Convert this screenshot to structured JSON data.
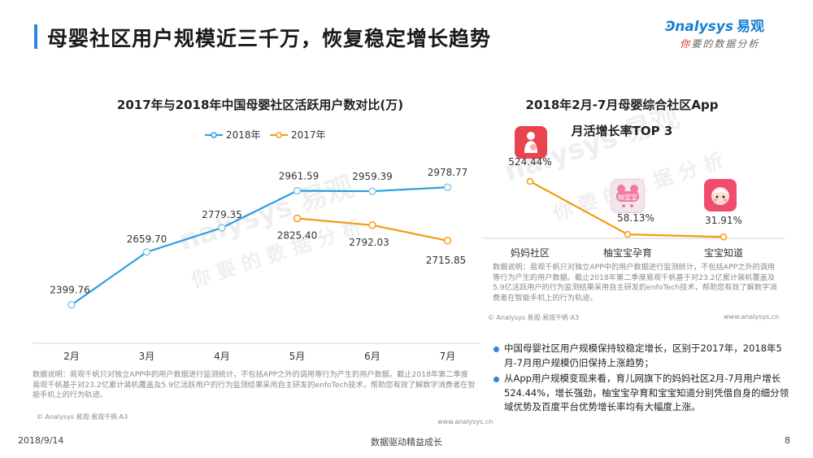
{
  "header": {
    "title": "母婴社区用户规模近三千万，恢复稳定增长趋势",
    "logo_en": "nalysys",
    "logo_cn": "易观",
    "logo_tagline_1": "你",
    "logo_tagline_2": "要的数据分析"
  },
  "left_chart": {
    "title": "2017年与2018年中国母婴社区活跃用户数对比(万)",
    "note": "数据说明：易观千帆只对独立APP中的用户数据进行监测统计，不包括APP之外的调用等行为产生的用户数据。截止2018年第二季度易观千帆基于对23.2亿累计装机覆盖及5.9亿活跃用户的行为监测结果采用自主研发的enfoTech技术，帮助您有效了解数字消费者在智能手机上的行为轨迹。",
    "source_left": "© Analysys 易观·易观千帆·A3",
    "source_right": "www.analysys.cn"
  },
  "right_chart": {
    "title_line1": "2018年2月-7月母婴综合社区App",
    "title_line2": "月活增长率TOP 3",
    "note": "数据说明：易观千帆只对独立APP中的用户数据进行监测统计，不包括APP之外的调用等行为产生的用户数据。截止2018年第二季度易观千帆基于对23.2亿累计装机覆盖及5.9亿活跃用户的行为监测结果采用自主研发的enfoTech技术，帮助您有效了解数字消费者在智能手机上的行为轨迹。",
    "source_left": "© Analysys 易观·易观千帆·A3",
    "source_right": "www.analysys.cn",
    "icon_label_2": "柚宝宝"
  },
  "chart_data": [
    {
      "type": "line",
      "title": "2017年与2018年中国母婴社区活跃用户数对比(万)",
      "categories": [
        "2月",
        "3月",
        "4月",
        "5月",
        "6月",
        "7月"
      ],
      "series": [
        {
          "name": "2018年",
          "color": "#2a9fe0",
          "values": [
            2399.76,
            2659.7,
            2779.35,
            2961.59,
            2959.39,
            2978.77
          ],
          "labels": [
            "2399.76",
            "2659.70",
            "2779.35",
            "2961.59",
            "2959.39",
            "2978.77"
          ]
        },
        {
          "name": "2017年",
          "color": "#f39c12",
          "values": [
            null,
            null,
            null,
            2825.4,
            2792.03,
            2715.85
          ],
          "labels": [
            "",
            "",
            "",
            "2825.40",
            "2792.03",
            "2715.85"
          ]
        }
      ],
      "ylim": [
        2250,
        3100
      ],
      "grid": false,
      "legend": "top"
    },
    {
      "type": "line",
      "title": "2018年2月-7月母婴综合社区App 月活增长率TOP 3",
      "categories": [
        "妈妈社区",
        "柚宝宝孕育",
        "宝宝知道"
      ],
      "series": [
        {
          "name": "growth",
          "color": "#f39c12",
          "values": [
            524.44,
            58.13,
            31.91
          ],
          "labels": [
            "524.44%",
            "58.13%",
            "31.91%"
          ]
        }
      ],
      "ylim": [
        0,
        700
      ],
      "grid": false
    }
  ],
  "bullets": [
    "中国母婴社区用户规模保持较稳定增长，区别于2017年，2018年5月-7月用户规模仍旧保持上涨趋势；",
    "从App用户规模变现来看，育儿网旗下的妈妈社区2月-7月用户增长524.44%，增长强劲，柚宝宝孕育和宝宝知道分别凭借自身的细分领域优势及百度平台优势增长率均有大幅度上涨。"
  ],
  "footer": {
    "date": "2018/9/14",
    "slogan": "数据驱动精益成长",
    "page": "8"
  },
  "watermark": {
    "line1": "nalysys 易观",
    "line2": "你 要 的 数 据 分 析"
  }
}
